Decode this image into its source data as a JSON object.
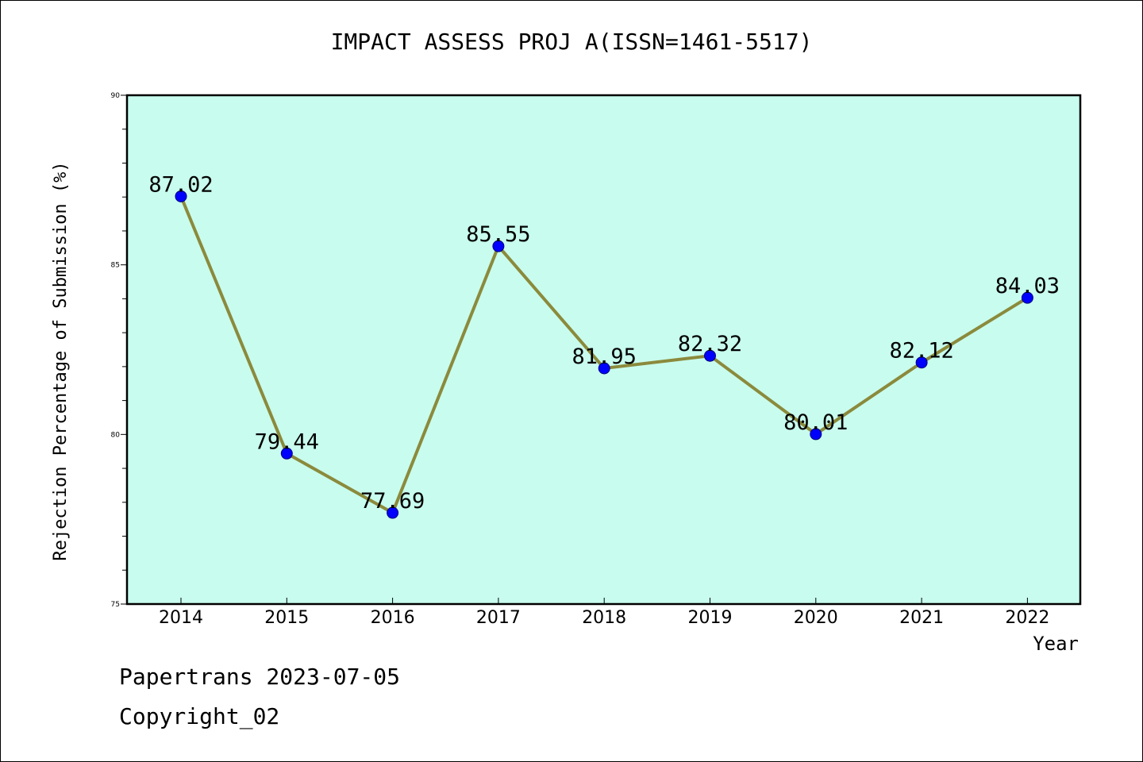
{
  "chart_data": {
    "type": "line",
    "title": "IMPACT ASSESS PROJ A(ISSN=1461-5517)",
    "xlabel": "Year",
    "ylabel": "Rejection Percentage of Submission (%)",
    "categories": [
      "2014",
      "2015",
      "2016",
      "2017",
      "2018",
      "2019",
      "2020",
      "2021",
      "2022"
    ],
    "series": [
      {
        "values": [
          87.02,
          79.44,
          77.69,
          85.55,
          81.95,
          82.32,
          80.01,
          82.12,
          84.03
        ],
        "data_labels": [
          "87.02",
          "79.44",
          "77.69",
          "85.55",
          "81.95",
          "82.32",
          "80.01",
          "82.12",
          "84.03"
        ]
      }
    ],
    "ylim": [
      75,
      90
    ],
    "yticks": [
      "75",
      "80",
      "85",
      "90"
    ],
    "grid": false,
    "colors": {
      "plot_background": "#c8fcee",
      "line": "#8b8a3c",
      "marker": "#0000ff",
      "axis": "#000000"
    }
  },
  "footer": {
    "source": "Papertrans 2023-07-05",
    "copyright": "Copyright_02"
  }
}
